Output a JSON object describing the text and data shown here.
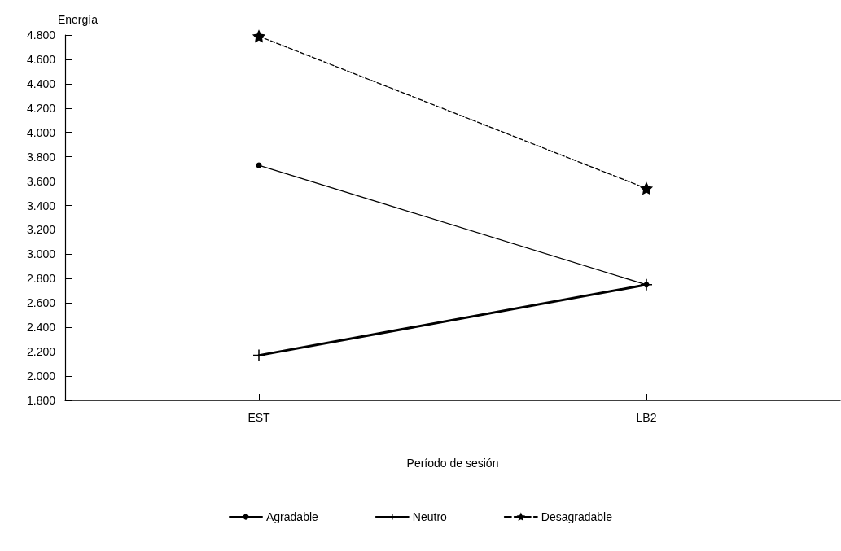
{
  "chart_data": {
    "type": "line",
    "xlabel": "Período de sesión",
    "ylabel": "Energía",
    "categories": [
      "EST",
      "LB2"
    ],
    "series": [
      {
        "name": "Agradable",
        "color": "#000000",
        "values": [
          3.73,
          2.75
        ],
        "marker": "circle",
        "line_style": "solid"
      },
      {
        "name": "Neutro",
        "color": "#000000",
        "values": [
          2.17,
          2.75
        ],
        "marker": "cross",
        "line_style": "solid"
      },
      {
        "name": "Desagradable",
        "color": "#000000",
        "values": [
          4.79,
          3.54
        ],
        "marker": "star",
        "line_style": "dashed"
      }
    ],
    "ylim": [
      1.8,
      4.8
    ],
    "yticks": [
      {
        "value": 1.8,
        "label": "1.800"
      },
      {
        "value": 2.0,
        "label": "2.000"
      },
      {
        "value": 2.2,
        "label": "2.200"
      },
      {
        "value": 2.4,
        "label": "2.400"
      },
      {
        "value": 2.6,
        "label": "2.600"
      },
      {
        "value": 2.8,
        "label": "2.800"
      },
      {
        "value": 3.0,
        "label": "3.000"
      },
      {
        "value": 3.2,
        "label": "3.200"
      },
      {
        "value": 3.4,
        "label": "3.400"
      },
      {
        "value": 3.6,
        "label": "3.600"
      },
      {
        "value": 3.8,
        "label": "3.800"
      },
      {
        "value": 4.0,
        "label": "4.000"
      },
      {
        "value": 4.2,
        "label": "4.200"
      },
      {
        "value": 4.4,
        "label": "4.400"
      },
      {
        "value": 4.6,
        "label": "4.600"
      },
      {
        "value": 4.8,
        "label": "4.800"
      }
    ],
    "grid": false,
    "legend": "bottom"
  }
}
